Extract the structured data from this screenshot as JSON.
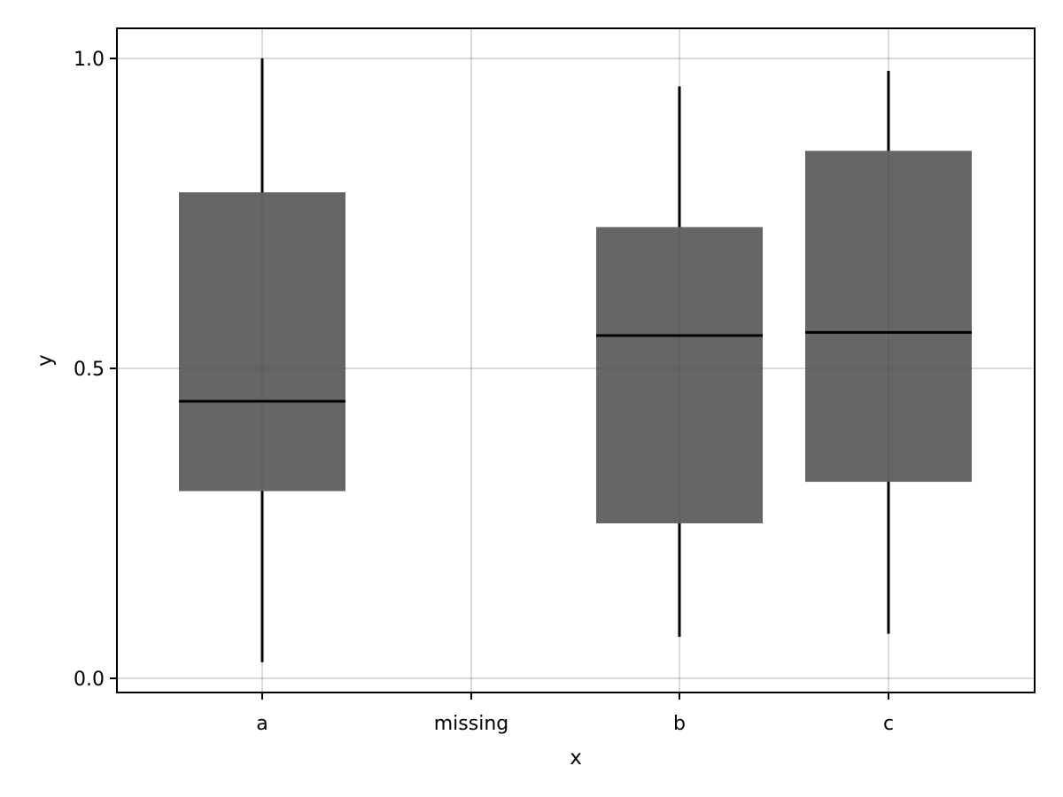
{
  "chart_data": {
    "type": "box",
    "title": "",
    "xlabel": "x",
    "ylabel": "y",
    "categories": [
      "a",
      "missing",
      "b",
      "c"
    ],
    "ylim": [
      -0.02,
      1.05
    ],
    "yticks": [
      0.0,
      0.5,
      1.0
    ],
    "ytick_labels": [
      "0.0",
      "0.5",
      "1.0"
    ],
    "grid": true,
    "legend": "none",
    "box_color": "#666666",
    "line_color": "#000000",
    "boxes": [
      {
        "category": "a",
        "min": 0.026,
        "q1": 0.302,
        "median": 0.447,
        "q3": 0.784,
        "max": 1.0
      },
      {
        "category": "b",
        "min": 0.067,
        "q1": 0.25,
        "median": 0.553,
        "q3": 0.728,
        "max": 0.955
      },
      {
        "category": "c",
        "min": 0.072,
        "q1": 0.317,
        "median": 0.558,
        "q3": 0.851,
        "max": 0.98
      }
    ]
  }
}
